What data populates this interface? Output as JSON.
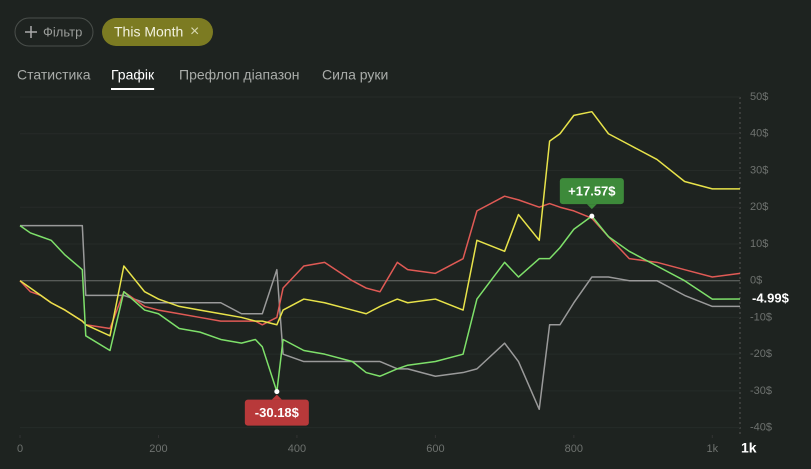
{
  "toolbar": {
    "filter_button": "Фільтр",
    "chip": "This Month",
    "chip_close": "×"
  },
  "tabs": [
    "Статистика",
    "Графік",
    "Префлоп діапазон",
    "Сила руки"
  ],
  "active_tab": 1,
  "range_button": "1k",
  "chart_data": {
    "type": "line",
    "grid": true,
    "xlim": [
      0,
      1040
    ],
    "xticks": [
      0,
      200,
      400,
      600,
      800,
      {
        "value": 1000,
        "label": "1k"
      }
    ],
    "ylim": [
      -42,
      50
    ],
    "yticks": [
      {
        "value": 50,
        "label": "50$"
      },
      {
        "value": 40,
        "label": "40$"
      },
      {
        "value": 30,
        "label": "30$"
      },
      {
        "value": 20,
        "label": "20$"
      },
      {
        "value": 10,
        "label": "10$"
      },
      {
        "value": 0,
        "label": "0$"
      },
      {
        "value": -10,
        "label": "-10$"
      },
      {
        "value": -20,
        "label": "-20$"
      },
      {
        "value": -30,
        "label": "-30$"
      },
      {
        "value": -40,
        "label": "-40$"
      }
    ],
    "x": [
      0,
      15,
      30,
      45,
      65,
      90,
      95,
      130,
      150,
      180,
      200,
      230,
      260,
      290,
      320,
      340,
      350,
      371,
      380,
      410,
      440,
      480,
      500,
      520,
      545,
      560,
      600,
      640,
      660,
      700,
      720,
      750,
      765,
      780,
      800,
      826,
      850,
      880,
      920,
      960,
      1000,
      1040
    ],
    "series": [
      {
        "color": "#9a9a9a",
        "values": [
          15,
          15,
          15,
          15,
          15,
          15,
          -4,
          -4,
          -4,
          -6,
          -6,
          -6,
          -6,
          -6,
          -9,
          -9,
          -9,
          3,
          -20,
          -22,
          -22,
          -22,
          -22,
          -22,
          -24,
          -24,
          -26,
          -25,
          -24,
          -17,
          -22,
          -35,
          -12,
          -12,
          -6,
          1,
          1,
          0,
          0,
          -4,
          -7,
          -7
        ]
      },
      {
        "color": "#e05a55",
        "values": [
          0,
          -3,
          -4,
          -6,
          -8,
          -11,
          -12,
          -13,
          -3,
          -7,
          -8,
          -9,
          -10,
          -11,
          -11,
          -11,
          -12,
          -10,
          -2,
          4,
          5,
          0,
          -2,
          -3,
          5,
          3,
          2,
          6,
          19,
          23,
          22,
          20,
          21,
          20,
          19,
          17,
          12,
          6,
          5,
          3,
          1,
          2
        ]
      },
      {
        "color": "#e8e34a",
        "values": [
          0,
          -2,
          -4,
          -6,
          -8,
          -11,
          -12,
          -15,
          4,
          -3,
          -5,
          -7,
          -8,
          -9,
          -10,
          -11,
          -11,
          -12,
          -8,
          -5,
          -6,
          -8,
          -9,
          -7,
          -5,
          -6,
          -5,
          -8,
          11,
          8,
          18,
          11,
          38,
          40,
          45,
          46,
          40,
          37,
          33,
          27,
          25,
          25
        ]
      },
      {
        "color": "#7ee06a",
        "values": [
          15,
          13,
          12,
          11,
          7,
          3,
          -15,
          -19,
          -3,
          -8,
          -9,
          -13,
          -14,
          -16,
          -17,
          -16,
          -18,
          -30.18,
          -16,
          -19,
          -20,
          -22,
          -25,
          -26,
          -24,
          -23,
          -22,
          -20,
          -5,
          5,
          1,
          6,
          6,
          9,
          14,
          17.57,
          12,
          8,
          4,
          0,
          -5,
          -4.99
        ]
      }
    ],
    "annotations": [
      {
        "label": "+17.57$",
        "x": 826,
        "y": 17.57,
        "color": "#3d8a3a"
      },
      {
        "label": "-30.18$",
        "x": 371,
        "y": -30.18,
        "color": "#b8393a"
      },
      {
        "label": "-4.99$",
        "x": 1040,
        "y": -4.99
      }
    ]
  }
}
